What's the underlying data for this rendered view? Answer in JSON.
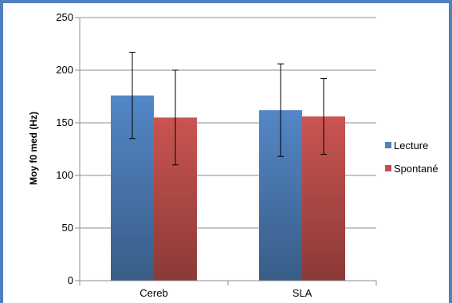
{
  "chart_data": {
    "type": "bar",
    "categories": [
      "Cereb",
      "SLA"
    ],
    "series": [
      {
        "name": "Lecture",
        "values": [
          176,
          162
        ],
        "error": [
          41,
          44
        ],
        "color": "#4f81bd"
      },
      {
        "name": "Spontané",
        "values": [
          155,
          156
        ],
        "error": [
          45,
          36
        ],
        "color": "#c0504d"
      }
    ],
    "ylabel": "Moy f0 med  (Hz)",
    "xlabel": "",
    "ylim": [
      0,
      250
    ],
    "yticks": [
      0,
      50,
      100,
      150,
      200,
      250
    ],
    "grid": true,
    "legend": "right"
  },
  "frame_color": "#4f81bd"
}
